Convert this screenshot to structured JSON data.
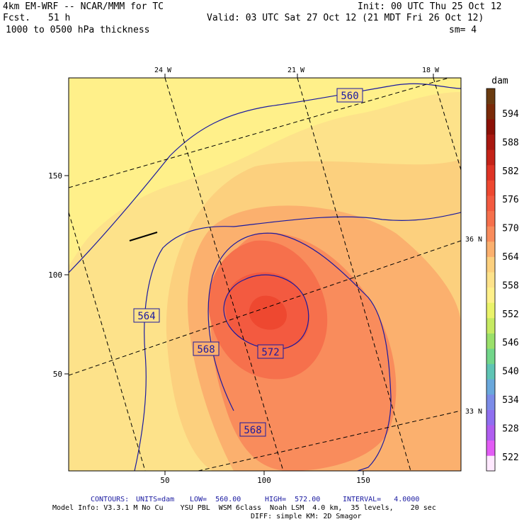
{
  "header": {
    "model": "4km EM-WRF -- NCAR/MMM for TC",
    "init": "Init: 00 UTC Thu 25 Oct 12",
    "fcst_label": "Fcst.",
    "fcst_value": "51 h",
    "valid": "Valid: 03 UTC Sat 27 Oct 12 (21 MDT Fri 26 Oct 12)",
    "field": "1000 to 0500 hPa thickness",
    "smoothing": "sm= 4"
  },
  "map": {
    "lon_labels": [
      "24 W",
      "21 W",
      "18 W"
    ],
    "lat_labels": [
      "36 N",
      "33 N"
    ],
    "x_ticks": [
      "50",
      "100",
      "150"
    ],
    "y_ticks": [
      "150",
      "100",
      "50"
    ],
    "contour_labels": [
      "560",
      "564",
      "568",
      "572",
      "568"
    ]
  },
  "legend": {
    "unit": "dam",
    "levels": [
      "594",
      "588",
      "582",
      "576",
      "570",
      "564",
      "558",
      "552",
      "546",
      "540",
      "534",
      "528",
      "522"
    ],
    "colors": [
      "#ffe9ff",
      "#e25cf5",
      "#b05ef0",
      "#8f6ff0",
      "#7c8ce8",
      "#6aa8dc",
      "#5fc4b4",
      "#72d68a",
      "#9ae06a",
      "#c6ea62",
      "#eaf36a",
      "#fff08a",
      "#fde28a",
      "#fcd07e",
      "#fbb06e",
      "#f98c5c",
      "#f6704c",
      "#f35a40",
      "#ee4830",
      "#de3325",
      "#c42318",
      "#a81810",
      "#8c1006",
      "#7a2a08",
      "#6a3b10"
    ]
  },
  "footer": {
    "contours_label": "CONTOURS:",
    "units": "UNITS=dam",
    "low": "LOW=  560.00",
    "high": "HIGH=  572.00",
    "interval": "INTERVAL=   4.0000",
    "model_info": "Model Info: V3.3.1 M No Cu    YSU PBL  WSM 6class  Noah LSM  4.0 km,  35 levels,    20 sec",
    "model_info2": "DIFF: simple KM: 2D Smagor"
  }
}
